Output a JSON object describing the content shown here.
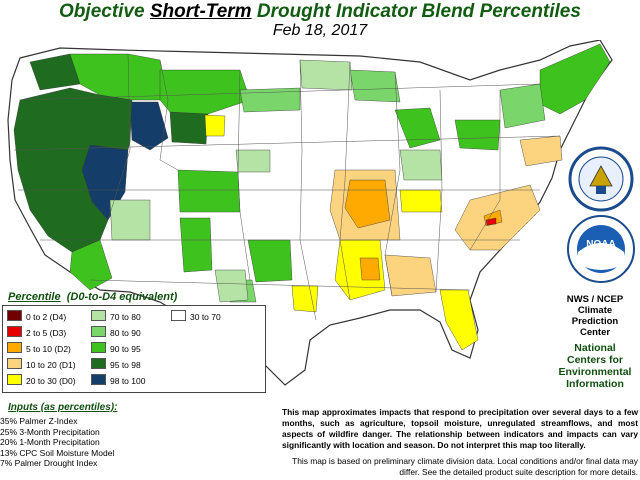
{
  "title": {
    "part1": "Objective ",
    "emph": "Short-Term",
    "part2": " Drought Indicator Blend Percentiles"
  },
  "date": "Feb 18, 2017",
  "legend": {
    "title_prefix": "Percentile",
    "title_suffix": "(D0-to-D4 equivalent)",
    "items": [
      {
        "label": "0 to 2  (D4)",
        "color": "#730000"
      },
      {
        "label": "2 to 5  (D3)",
        "color": "#e60000"
      },
      {
        "label": "5 to 10  (D2)",
        "color": "#ffaa00"
      },
      {
        "label": "10 to 20  (D1)",
        "color": "#fcd37f"
      },
      {
        "label": "20 to 30  (D0)",
        "color": "#ffff00"
      },
      {
        "label": "70 to 80",
        "color": "#b5e3a5"
      },
      {
        "label": "80 to 90",
        "color": "#7ad66a"
      },
      {
        "label": "90 to 95",
        "color": "#3ec21e"
      },
      {
        "label": "95 to 98",
        "color": "#1f6b1f"
      },
      {
        "label": "98 to 100",
        "color": "#143d69"
      },
      {
        "label": "30 to 70",
        "color": "#ffffff"
      }
    ]
  },
  "inputs": {
    "title": "Inputs (as percentiles):",
    "items": [
      "35% Palmer Z-Index",
      "25% 3-Month Precipitation",
      "20% 1-Month Precipitation",
      "13% CPC Soil Moisture Model",
      " 7% Palmer Drought Index"
    ]
  },
  "note_bold": "This map approximates impacts that respond to precipitation over several days to a few months, such as agriculture, topsoil moisture, unregulated streamflows, and most aspects of wildfire danger. The relationship between indicators and impacts can vary significantly with location and season. Do not interpret this map too literally.",
  "note_small": "This map is based on preliminary climate division data. Local conditions and/or final data may differ. See the detailed product suite description for more details.",
  "credit": {
    "line1": "NWS / NCEP",
    "line2": "Climate",
    "line3": "Prediction",
    "line4": "Center",
    "line5": "National",
    "line6": "Centers for",
    "line7": "Environmental",
    "line8": "Information"
  },
  "logos": {
    "noaa_text": "NOAA",
    "commerce_name": "department-of-commerce-seal",
    "noaa_name": "noaa-logo"
  },
  "map": {
    "land_color": "#ffffff",
    "border_color": "#444444",
    "state_line_color": "#666666"
  }
}
